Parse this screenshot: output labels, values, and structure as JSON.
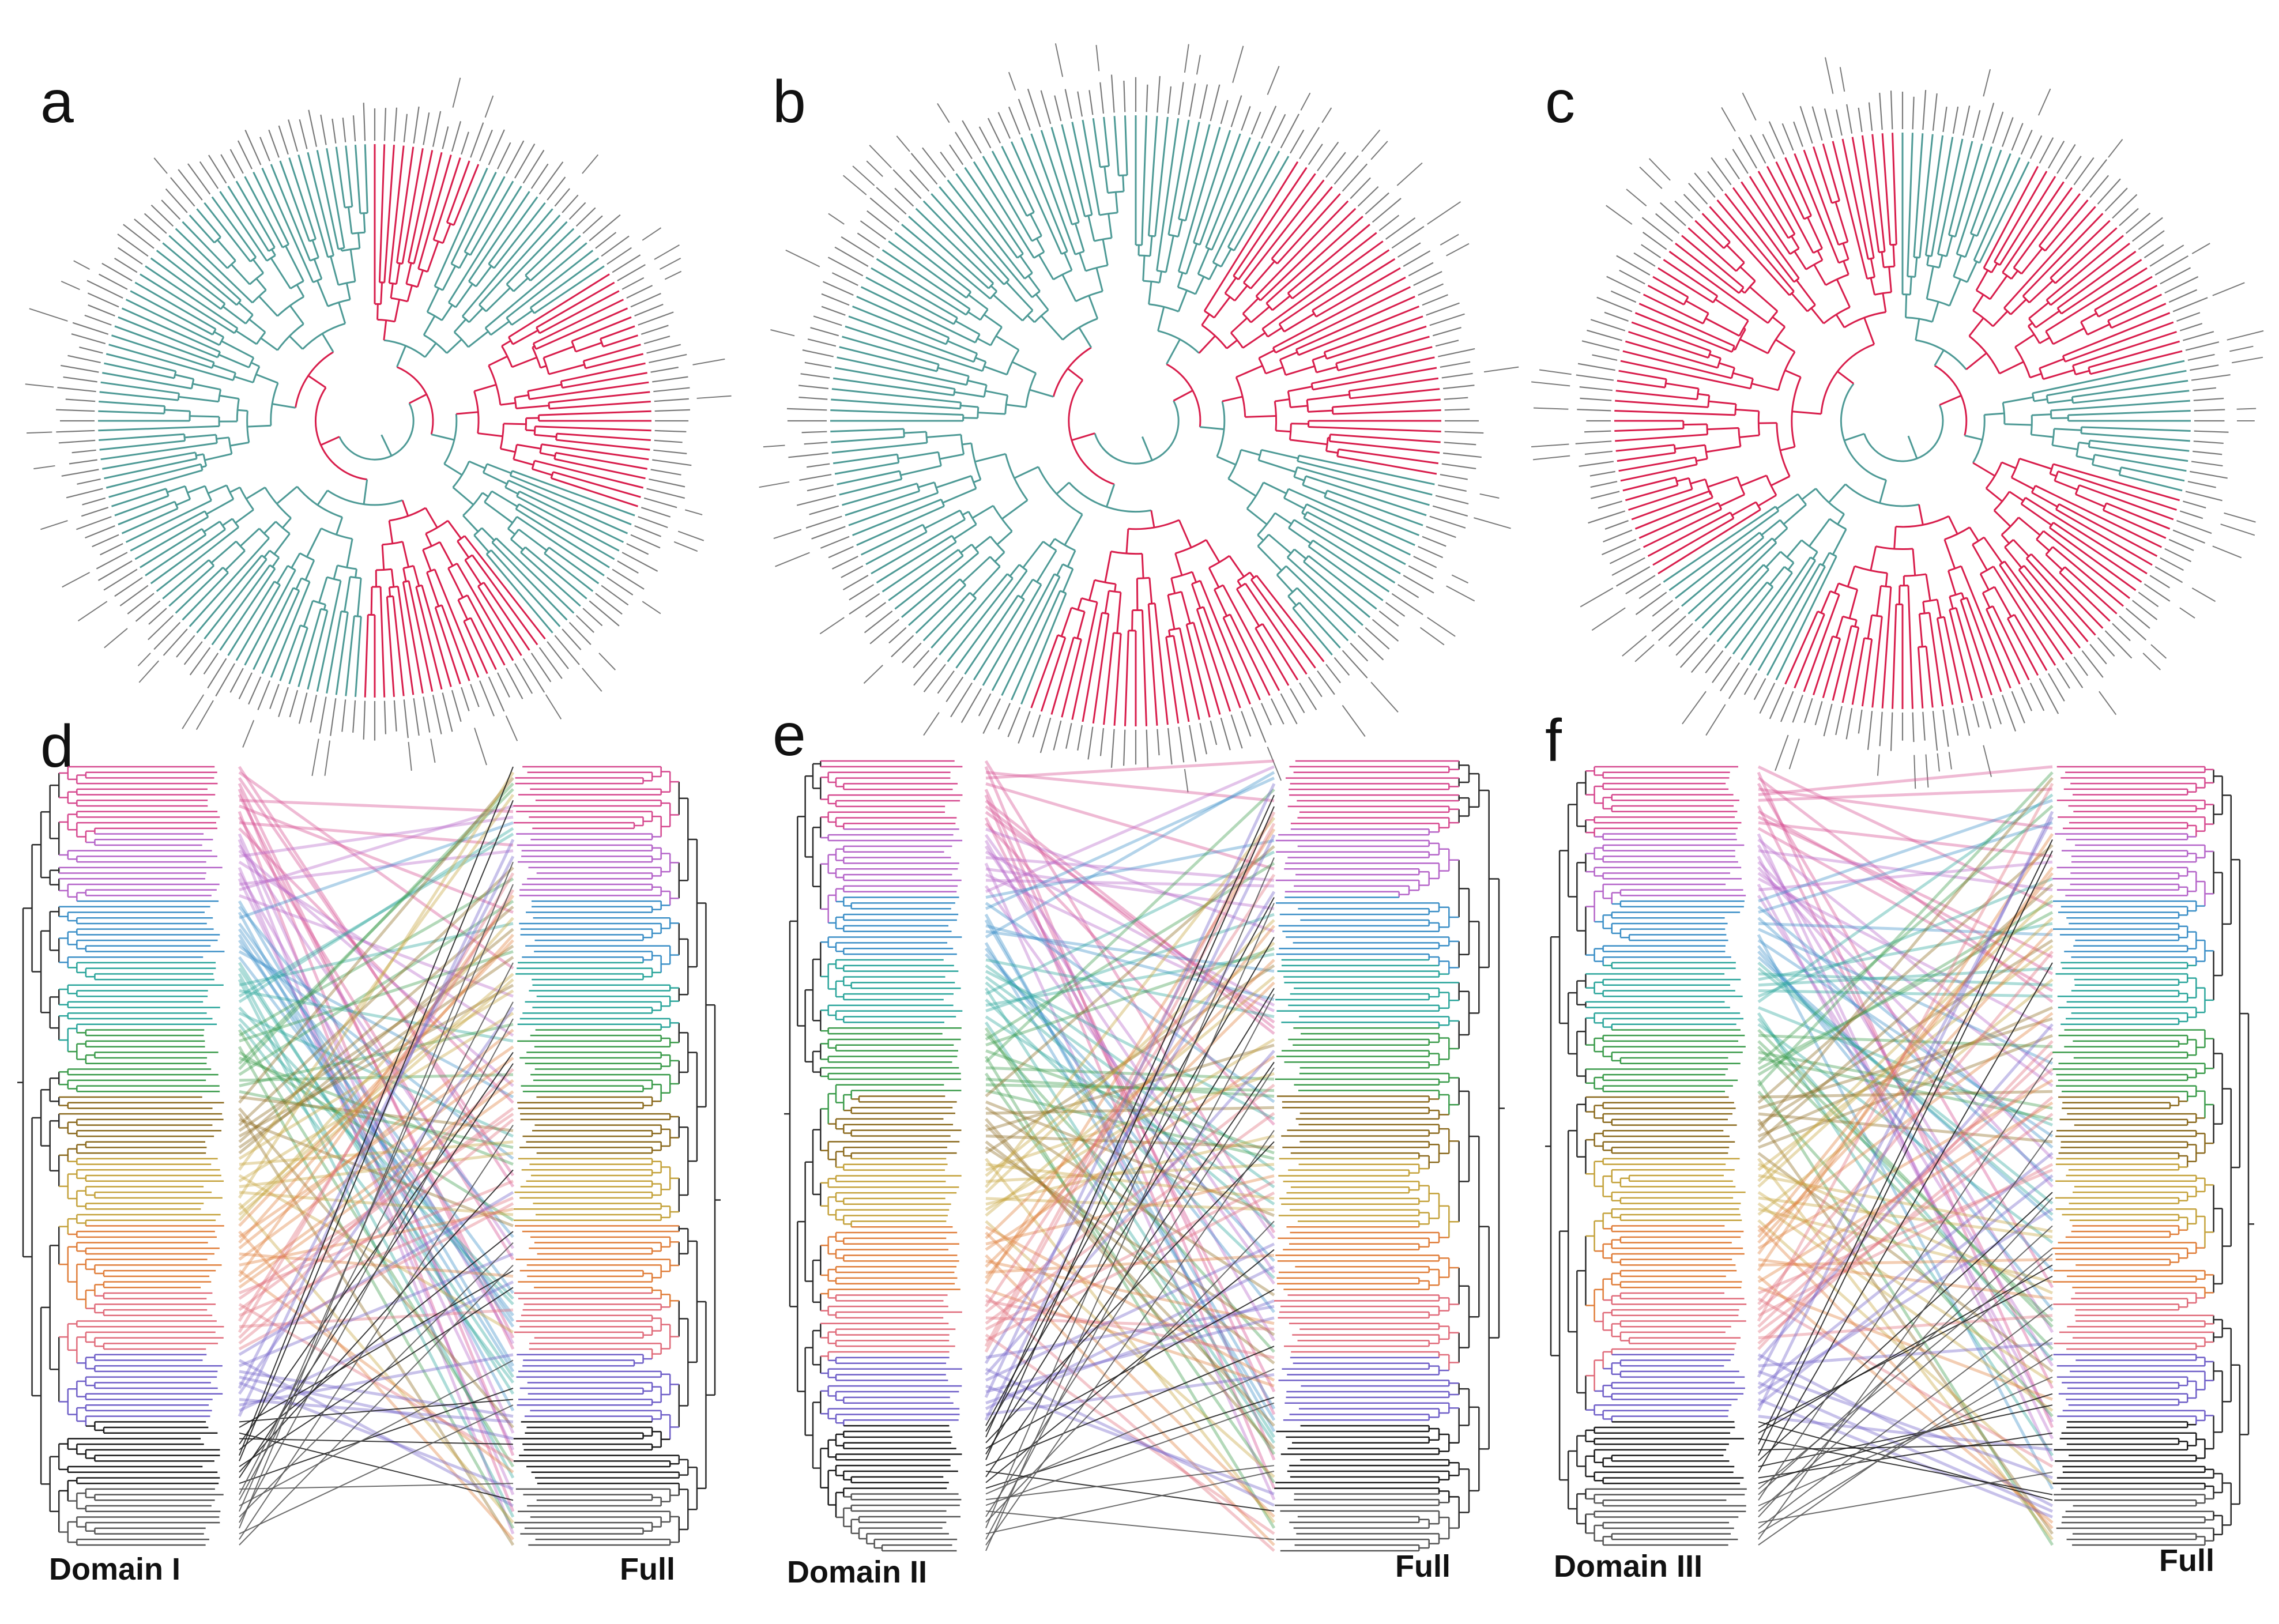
{
  "panels": {
    "a": {
      "letter": "a"
    },
    "b": {
      "letter": "b"
    },
    "c": {
      "letter": "c"
    },
    "d": {
      "letter": "d",
      "left_label": "Domain I",
      "right_label": "Full"
    },
    "e": {
      "letter": "e",
      "left_label": "Domain II",
      "right_label": "Full"
    },
    "f": {
      "letter": "f",
      "left_label": "Domain III",
      "right_label": "Full"
    }
  },
  "colors": {
    "circular_branch_primary": "#4e9a96",
    "circular_branch_highlight": "#d81e4c",
    "leaf_label_grey": "#7a7a7a",
    "clade_palette": [
      "#d6498f",
      "#b565c9",
      "#3b8fc7",
      "#2aa59b",
      "#3a9b4a",
      "#8b6a1e",
      "#c4a23b",
      "#e07e3a",
      "#e06b7a",
      "#6f5fc8",
      "#1a1a1a",
      "#555555"
    ]
  },
  "icons": {
    "circular_tree": "radial-phylogeny",
    "tanglegram": "tanglegram-trees"
  }
}
